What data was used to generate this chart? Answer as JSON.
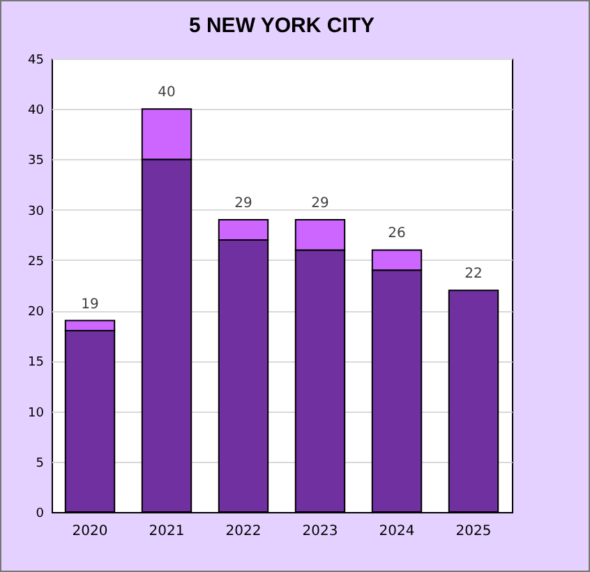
{
  "chart_data": {
    "type": "bar",
    "title": "5 NEW YORK CITY",
    "categories": [
      "2020",
      "2021",
      "2022",
      "2023",
      "2024",
      "2025"
    ],
    "stacked": true,
    "series": [
      {
        "color": "#7030a0",
        "values": [
          18,
          35,
          27,
          26,
          24,
          22
        ]
      },
      {
        "color": "#cc66ff",
        "values": [
          1,
          5,
          2,
          3,
          2,
          0
        ]
      }
    ],
    "totals": [
      "19",
      "40",
      "29",
      "29",
      "26",
      "22"
    ],
    "ylim": [
      0,
      45
    ],
    "yticks": [
      0,
      5,
      10,
      15,
      20,
      25,
      30,
      35,
      40,
      45
    ],
    "grid": "y",
    "legend": false
  }
}
